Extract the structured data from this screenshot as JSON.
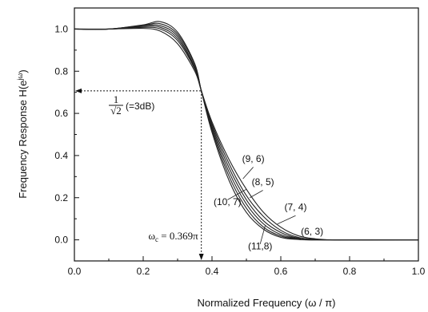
{
  "chart_data": {
    "type": "line",
    "title": "",
    "xlabel": "Normalized Frequency  (ω / π)",
    "ylabel_main": "Frequency Response  H(e",
    "ylabel_sup": "jω",
    "ylabel_close": ")",
    "xlim": [
      0.0,
      1.0
    ],
    "ylim": [
      -0.1,
      1.1
    ],
    "x_ticks": [
      0.0,
      0.2,
      0.4,
      0.6,
      0.8,
      1.0
    ],
    "x_tick_labels": [
      "0.0",
      "0.2",
      "0.4",
      "0.6",
      "0.8",
      "1.0"
    ],
    "y_ticks": [
      0.0,
      0.2,
      0.4,
      0.6,
      0.8,
      1.0
    ],
    "y_tick_labels": [
      "0.0",
      "0.2",
      "0.4",
      "0.6",
      "0.8",
      "1.0"
    ],
    "grid": false,
    "annotations": {
      "three_db_note": "(=3dB)",
      "frac_num": "1",
      "frac_den": "√2",
      "three_db_level": 0.707,
      "cutoff_x": 0.369,
      "cutoff_label_omega": "ω",
      "cutoff_label_sub": "c",
      "cutoff_label_value": " = 0.369π"
    },
    "series": [
      {
        "name": "(6, 3)",
        "label_x": 0.691,
        "label_y": 0.025,
        "points": [
          [
            0,
            1.0
          ],
          [
            0.1,
            1.0
          ],
          [
            0.2,
            1.003
          ],
          [
            0.25,
            0.99
          ],
          [
            0.3,
            0.93
          ],
          [
            0.35,
            0.8
          ],
          [
            0.369,
            0.707
          ],
          [
            0.4,
            0.56
          ],
          [
            0.45,
            0.38
          ],
          [
            0.5,
            0.24
          ],
          [
            0.55,
            0.13
          ],
          [
            0.6,
            0.06
          ],
          [
            0.65,
            0.02
          ],
          [
            0.7,
            0.005
          ],
          [
            0.75,
            0.0
          ],
          [
            0.8,
            0.0
          ],
          [
            1.0,
            0.0
          ]
        ]
      },
      {
        "name": "(7, 4)",
        "label_x": 0.643,
        "label_y": 0.14,
        "points": [
          [
            0,
            1.0
          ],
          [
            0.1,
            1.0
          ],
          [
            0.2,
            1.008
          ],
          [
            0.25,
            1.0
          ],
          [
            0.3,
            0.945
          ],
          [
            0.35,
            0.81
          ],
          [
            0.369,
            0.707
          ],
          [
            0.4,
            0.55
          ],
          [
            0.45,
            0.36
          ],
          [
            0.5,
            0.21
          ],
          [
            0.55,
            0.11
          ],
          [
            0.6,
            0.045
          ],
          [
            0.65,
            0.012
          ],
          [
            0.7,
            0.002
          ],
          [
            0.75,
            0.0
          ],
          [
            1.0,
            0.0
          ]
        ]
      },
      {
        "name": "(8, 5)",
        "label_x": 0.548,
        "label_y": 0.26,
        "points": [
          [
            0,
            1.0
          ],
          [
            0.1,
            1.0
          ],
          [
            0.2,
            1.012
          ],
          [
            0.25,
            1.008
          ],
          [
            0.3,
            0.955
          ],
          [
            0.35,
            0.815
          ],
          [
            0.369,
            0.707
          ],
          [
            0.4,
            0.54
          ],
          [
            0.45,
            0.34
          ],
          [
            0.5,
            0.19
          ],
          [
            0.55,
            0.09
          ],
          [
            0.6,
            0.035
          ],
          [
            0.65,
            0.008
          ],
          [
            0.7,
            0.0
          ],
          [
            1.0,
            0.0
          ]
        ]
      },
      {
        "name": "(9, 6)",
        "label_x": 0.52,
        "label_y": 0.37,
        "points": [
          [
            0,
            1.0
          ],
          [
            0.1,
            1.0
          ],
          [
            0.2,
            1.016
          ],
          [
            0.25,
            1.016
          ],
          [
            0.3,
            0.965
          ],
          [
            0.35,
            0.82
          ],
          [
            0.369,
            0.707
          ],
          [
            0.4,
            0.53
          ],
          [
            0.45,
            0.32
          ],
          [
            0.5,
            0.17
          ],
          [
            0.55,
            0.075
          ],
          [
            0.6,
            0.025
          ],
          [
            0.65,
            0.005
          ],
          [
            0.7,
            0.0
          ],
          [
            1.0,
            0.0
          ]
        ]
      },
      {
        "name": "(10, 7)",
        "label_x": 0.445,
        "label_y": 0.165,
        "points": [
          [
            0,
            1.0
          ],
          [
            0.1,
            1.0
          ],
          [
            0.2,
            1.018
          ],
          [
            0.25,
            1.025
          ],
          [
            0.3,
            0.975
          ],
          [
            0.35,
            0.83
          ],
          [
            0.369,
            0.707
          ],
          [
            0.4,
            0.52
          ],
          [
            0.45,
            0.3
          ],
          [
            0.5,
            0.15
          ],
          [
            0.55,
            0.06
          ],
          [
            0.6,
            0.018
          ],
          [
            0.65,
            0.003
          ],
          [
            0.7,
            0.0
          ],
          [
            1.0,
            0.0
          ]
        ]
      },
      {
        "name": "(11,8)",
        "label_x": 0.54,
        "label_y": -0.045,
        "points": [
          [
            0,
            1.0
          ],
          [
            0.1,
            1.0
          ],
          [
            0.2,
            1.02
          ],
          [
            0.25,
            1.035
          ],
          [
            0.3,
            0.985
          ],
          [
            0.35,
            0.835
          ],
          [
            0.369,
            0.707
          ],
          [
            0.4,
            0.51
          ],
          [
            0.45,
            0.28
          ],
          [
            0.5,
            0.13
          ],
          [
            0.55,
            0.05
          ],
          [
            0.6,
            0.012
          ],
          [
            0.65,
            0.002
          ],
          [
            0.7,
            0.0
          ],
          [
            1.0,
            0.0
          ]
        ]
      }
    ]
  }
}
